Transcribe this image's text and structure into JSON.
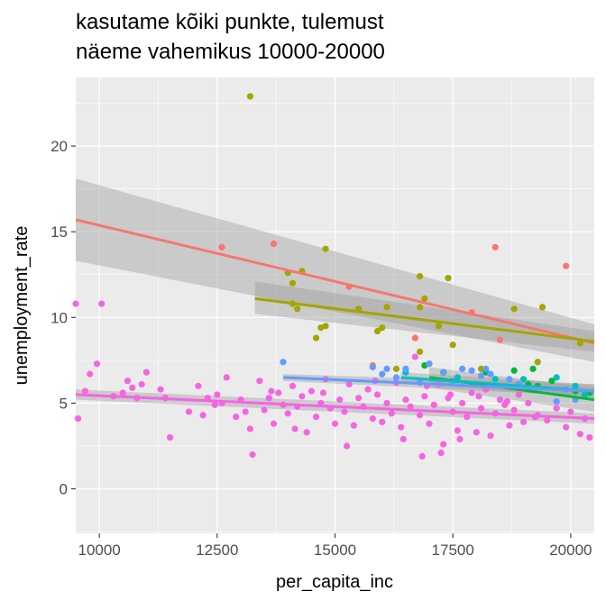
{
  "chart_data": {
    "type": "scatter",
    "title_lines": [
      "kasutame kõiki punkte, tulemust",
      "näeme vahemikus 10000-20000"
    ],
    "xlabel": "per_capita_inc",
    "ylabel": "unemployment_rate",
    "xlim": [
      9500,
      20500
    ],
    "ylim": [
      -2.6,
      24.0
    ],
    "x_ticks": [
      10000,
      12500,
      15000,
      17500,
      20000
    ],
    "x_tick_labels": [
      "10000",
      "12500",
      "15000",
      "17500",
      "20000"
    ],
    "y_ticks": [
      0,
      5,
      10,
      15,
      20
    ],
    "y_tick_labels": [
      "0",
      "5",
      "10",
      "15",
      "20"
    ],
    "grid": true,
    "legend": "none",
    "series": [
      {
        "color": "#F8766D",
        "points": [
          [
            12600,
            14.1
          ],
          [
            13700,
            14.3
          ],
          [
            15300,
            11.8
          ],
          [
            15800,
            7.2
          ],
          [
            16700,
            8.8
          ],
          [
            17900,
            10.3
          ],
          [
            18400,
            14.1
          ],
          [
            18500,
            8.7
          ],
          [
            19900,
            13.0
          ]
        ],
        "fit": {
          "x": [
            9500,
            20500
          ],
          "y": [
            15.7,
            8.5
          ]
        },
        "band": {
          "x": [
            9500,
            20500
          ],
          "upper": [
            18.1,
            9.6
          ],
          "lower": [
            13.3,
            7.4
          ]
        }
      },
      {
        "color": "#A3A500",
        "points": [
          [
            13200,
            22.9
          ],
          [
            14000,
            12.6
          ],
          [
            14100,
            10.8
          ],
          [
            14200,
            10.5
          ],
          [
            14100,
            12.0
          ],
          [
            14300,
            12.7
          ],
          [
            14600,
            8.8
          ],
          [
            14700,
            9.4
          ],
          [
            14800,
            9.5
          ],
          [
            14800,
            14.0
          ],
          [
            15500,
            10.5
          ],
          [
            15900,
            9.2
          ],
          [
            16000,
            9.4
          ],
          [
            16100,
            10.6
          ],
          [
            16300,
            7.0
          ],
          [
            16800,
            12.4
          ],
          [
            16800,
            10.6
          ],
          [
            16900,
            11.1
          ],
          [
            16800,
            8.0
          ],
          [
            17000,
            7.3
          ],
          [
            17200,
            9.5
          ],
          [
            17400,
            12.3
          ],
          [
            17500,
            8.4
          ],
          [
            18100,
            7.0
          ],
          [
            18800,
            10.5
          ],
          [
            19300,
            7.4
          ],
          [
            19400,
            10.6
          ],
          [
            20200,
            8.5
          ]
        ],
        "fit": {
          "x": [
            13300,
            20500
          ],
          "y": [
            11.1,
            8.6
          ]
        },
        "band": {
          "x": [
            13300,
            20500
          ],
          "upper": [
            12.1,
            9.2
          ],
          "lower": [
            10.2,
            8.0
          ]
        }
      },
      {
        "color": "#00BA38",
        "points": [
          [
            16900,
            7.2
          ],
          [
            17300,
            6.8
          ],
          [
            18200,
            6.8
          ],
          [
            18800,
            6.9
          ],
          [
            19200,
            7.0
          ],
          [
            19300,
            6.0
          ],
          [
            19600,
            6.3
          ],
          [
            20100,
            5.7
          ],
          [
            20400,
            5.6
          ],
          [
            19100,
            6.1
          ]
        ],
        "fit": {
          "x": [
            17000,
            20500
          ],
          "y": [
            6.5,
            5.2
          ]
        },
        "band": {
          "x": [
            17000,
            20500
          ],
          "upper": [
            7.1,
            5.9
          ],
          "lower": [
            5.9,
            4.5
          ]
        }
      },
      {
        "color": "#00BFC4",
        "points": [
          [
            16500,
            6.8
          ],
          [
            17600,
            6.5
          ],
          [
            18400,
            6.4
          ],
          [
            19000,
            6.4
          ],
          [
            19700,
            6.5
          ],
          [
            20100,
            6.0
          ],
          [
            20300,
            5.5
          ]
        ],
        "fit": {
          "x": [
            16400,
            20500
          ],
          "y": [
            6.5,
            5.7
          ]
        },
        "band": {
          "x": [
            16400,
            20500
          ],
          "upper": [
            6.8,
            6.1
          ],
          "lower": [
            6.2,
            5.3
          ]
        }
      },
      {
        "color": "#619CFF",
        "points": [
          [
            13900,
            7.4
          ],
          [
            15800,
            7.1
          ],
          [
            16000,
            6.7
          ],
          [
            16100,
            7.0
          ],
          [
            16300,
            6.5
          ],
          [
            16500,
            7.0
          ],
          [
            17000,
            7.3
          ],
          [
            17300,
            6.8
          ],
          [
            17700,
            7.0
          ],
          [
            17900,
            6.9
          ],
          [
            18100,
            6.6
          ],
          [
            18200,
            7.0
          ],
          [
            18300,
            6.7
          ],
          [
            18900,
            6.1
          ],
          [
            19700,
            5.1
          ],
          [
            19900,
            5.8
          ],
          [
            20100,
            5.2
          ],
          [
            16800,
            6.2
          ],
          [
            17500,
            6.3
          ],
          [
            18700,
            6.4
          ]
        ],
        "fit": {
          "x": [
            13900,
            20500
          ],
          "y": [
            6.5,
            5.7
          ]
        },
        "band": {
          "x": [
            13900,
            20500
          ],
          "upper": [
            6.7,
            6.1
          ],
          "lower": [
            6.3,
            5.4
          ]
        }
      },
      {
        "color": "#F564E3",
        "points": [
          [
            9500,
            10.8
          ],
          [
            9550,
            4.1
          ],
          [
            9700,
            5.7
          ],
          [
            9800,
            6.7
          ],
          [
            9950,
            7.3
          ],
          [
            10050,
            10.8
          ],
          [
            10300,
            5.4
          ],
          [
            10500,
            5.6
          ],
          [
            10600,
            6.3
          ],
          [
            10700,
            5.9
          ],
          [
            10800,
            5.3
          ],
          [
            10900,
            6.1
          ],
          [
            11000,
            6.8
          ],
          [
            11300,
            5.8
          ],
          [
            11400,
            5.3
          ],
          [
            11500,
            3.0
          ],
          [
            11900,
            4.5
          ],
          [
            12100,
            6.0
          ],
          [
            12200,
            4.3
          ],
          [
            12300,
            5.3
          ],
          [
            12500,
            5.5
          ],
          [
            12600,
            5.0
          ],
          [
            12700,
            6.5
          ],
          [
            12900,
            4.2
          ],
          [
            13000,
            5.2
          ],
          [
            13100,
            4.5
          ],
          [
            13200,
            3.5
          ],
          [
            13250,
            2.0
          ],
          [
            13400,
            6.3
          ],
          [
            13500,
            4.6
          ],
          [
            13600,
            5.3
          ],
          [
            13700,
            3.8
          ],
          [
            13800,
            5.6
          ],
          [
            13900,
            4.9
          ],
          [
            14000,
            4.4
          ],
          [
            14100,
            6.0
          ],
          [
            14200,
            4.8
          ],
          [
            14300,
            5.4
          ],
          [
            14400,
            3.3
          ],
          [
            14500,
            5.7
          ],
          [
            14600,
            4.2
          ],
          [
            14700,
            5.0
          ],
          [
            14800,
            6.4
          ],
          [
            14900,
            4.7
          ],
          [
            15000,
            3.8
          ],
          [
            15100,
            5.2
          ],
          [
            15200,
            4.5
          ],
          [
            15300,
            6.1
          ],
          [
            15400,
            3.7
          ],
          [
            15500,
            5.3
          ],
          [
            15600,
            4.8
          ],
          [
            15700,
            5.8
          ],
          [
            15800,
            4.1
          ],
          [
            15900,
            5.5
          ],
          [
            16000,
            3.9
          ],
          [
            16100,
            5.0
          ],
          [
            16200,
            4.4
          ],
          [
            16300,
            6.2
          ],
          [
            16400,
            3.6
          ],
          [
            16500,
            5.2
          ],
          [
            16600,
            4.8
          ],
          [
            16700,
            7.7
          ],
          [
            16800,
            4.3
          ],
          [
            16900,
            5.4
          ],
          [
            17000,
            3.8
          ],
          [
            17100,
            4.9
          ],
          [
            17200,
            6.1
          ],
          [
            17300,
            2.6
          ],
          [
            17400,
            5.3
          ],
          [
            17500,
            4.5
          ],
          [
            17600,
            3.4
          ],
          [
            17700,
            5.0
          ],
          [
            17800,
            4.2
          ],
          [
            17900,
            5.6
          ],
          [
            18000,
            3.3
          ],
          [
            18100,
            4.7
          ],
          [
            18200,
            5.8
          ],
          [
            18300,
            3.1
          ],
          [
            18400,
            4.4
          ],
          [
            18500,
            5.2
          ],
          [
            18600,
            4.9
          ],
          [
            18700,
            3.7
          ],
          [
            18800,
            4.6
          ],
          [
            18900,
            5.5
          ],
          [
            19000,
            3.9
          ],
          [
            19100,
            5.0
          ],
          [
            19300,
            4.3
          ],
          [
            19500,
            4.0
          ],
          [
            19700,
            4.7
          ],
          [
            19900,
            3.6
          ],
          [
            20000,
            4.5
          ],
          [
            20200,
            3.2
          ],
          [
            20400,
            3.0
          ],
          [
            14150,
            3.5
          ],
          [
            15250,
            2.5
          ],
          [
            16450,
            2.9
          ],
          [
            16850,
            1.9
          ],
          [
            17250,
            2.1
          ],
          [
            17650,
            2.9
          ],
          [
            12450,
            4.9
          ],
          [
            13650,
            5.7
          ],
          [
            14750,
            5.6
          ],
          [
            15850,
            6.3
          ],
          [
            16950,
            6.0
          ],
          [
            17450,
            5.5
          ],
          [
            18050,
            5.4
          ],
          [
            18650,
            5.1
          ],
          [
            19250,
            4.2
          ],
          [
            20300,
            4.1
          ]
        ],
        "fit": {
          "x": [
            9500,
            20500
          ],
          "y": [
            5.5,
            4.1
          ]
        },
        "band": {
          "x": [
            9500,
            20500
          ],
          "upper": [
            5.8,
            4.4
          ],
          "lower": [
            5.2,
            3.8
          ]
        }
      }
    ]
  }
}
